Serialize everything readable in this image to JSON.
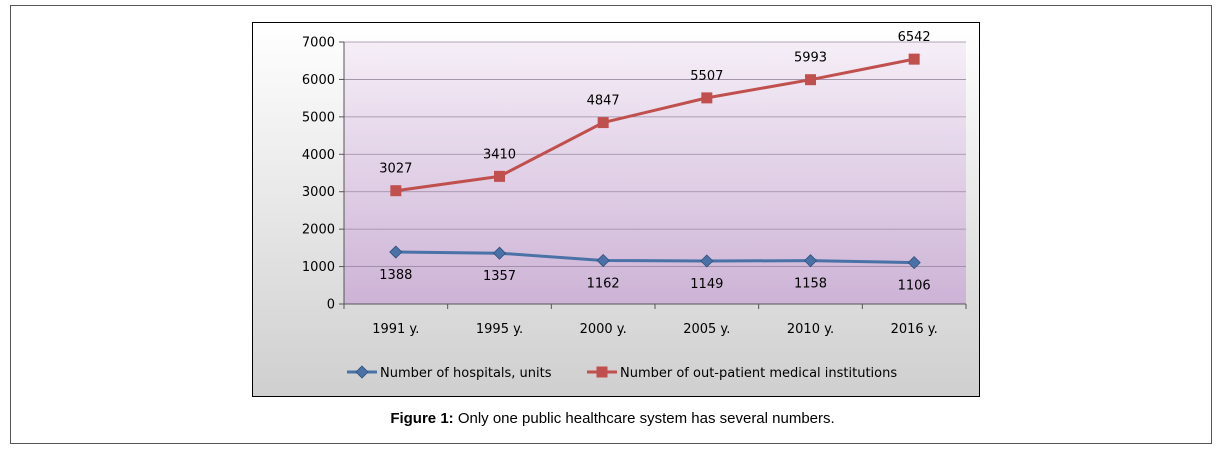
{
  "chart_data": {
    "type": "line",
    "categories": [
      "1991 y.",
      "1995 y.",
      "2000 y.",
      "2005 y.",
      "2010 y.",
      "2016 y."
    ],
    "ylim": [
      0,
      7000
    ],
    "yticks": [
      0,
      1000,
      2000,
      3000,
      4000,
      5000,
      6000,
      7000
    ],
    "grid": true,
    "legend_position": "bottom",
    "series": [
      {
        "name": "Number of hospitals, units",
        "values": [
          1388,
          1357,
          1162,
          1149,
          1158,
          1106
        ],
        "color": "#4a72a6",
        "marker": "diamond",
        "label_position": "below"
      },
      {
        "name": "Number of out-patient medical institutions",
        "values": [
          3027,
          3410,
          4847,
          5507,
          5993,
          6542
        ],
        "color": "#c0504d",
        "marker": "square",
        "label_position": "above"
      }
    ]
  },
  "caption": {
    "prefix": "Figure 1:",
    "text": " Only one public healthcare system has several numbers."
  }
}
